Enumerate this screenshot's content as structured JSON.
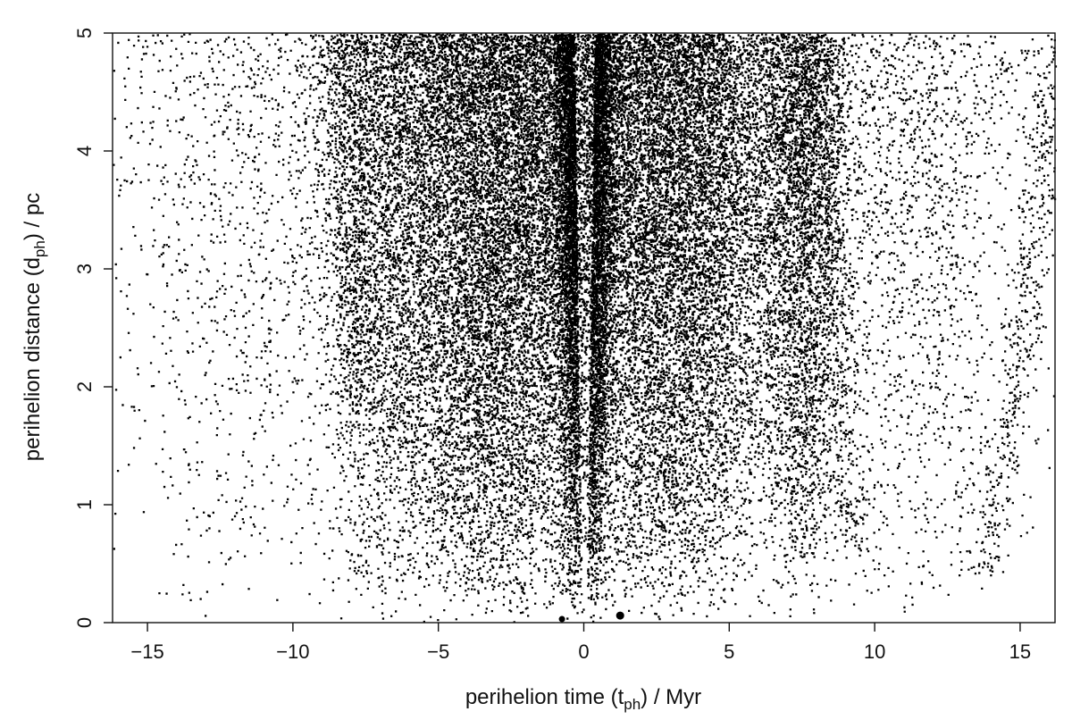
{
  "chart_data": {
    "type": "scatter",
    "title": "",
    "xlabel": {
      "prefix": "perihelion time (t",
      "sub": "ph",
      "suffix": ") / Myr"
    },
    "ylabel": {
      "prefix": "perihelion distance (d",
      "sub": "ph",
      "suffix": ") / pc"
    },
    "xlim": [
      -16.2,
      16.2
    ],
    "ylim": [
      0,
      5
    ],
    "x_ticks": [
      -15,
      -10,
      -5,
      0,
      5,
      10,
      15
    ],
    "x_tick_labels": [
      "−15",
      "−10",
      "−5",
      "0",
      "5",
      "10",
      "15"
    ],
    "y_ticks": [
      0,
      1,
      2,
      3,
      4,
      5
    ],
    "y_tick_labels": [
      "0",
      "1",
      "2",
      "3",
      "4",
      "5"
    ],
    "grid": false,
    "legend": "none",
    "point_color": "#000000",
    "highlighted_points": [
      {
        "x": 1.25,
        "y": 0.06
      },
      {
        "x": -0.75,
        "y": 0.03
      }
    ],
    "approx_point_count": 40000,
    "density_bands": [
      {
        "center": 0.0,
        "spread": 0.6,
        "weight": 0.14,
        "note": "inner V-shaped streaks"
      },
      {
        "center": -3.0,
        "spread": 2.4,
        "weight": 0.3
      },
      {
        "center": 3.0,
        "spread": 2.6,
        "weight": 0.3
      },
      {
        "center": -7.0,
        "spread": 1.3,
        "weight": 0.06
      },
      {
        "center": 7.5,
        "spread": 0.8,
        "weight": 0.07
      },
      {
        "center": 11.5,
        "spread": 2.5,
        "weight": 0.04
      },
      {
        "center": -11.5,
        "spread": 3.0,
        "weight": 0.03
      }
    ],
    "arc_tracks": [
      {
        "x_at_y0": 12.6,
        "x_at_y5": 16.2,
        "y_start": 0.4
      },
      {
        "x_at_y0": 9.8,
        "x_at_y5": 8.2,
        "y_start": 0.6
      },
      {
        "x_at_y0": -7.0,
        "x_at_y5": -8.2,
        "y_start": 1.8
      }
    ]
  }
}
